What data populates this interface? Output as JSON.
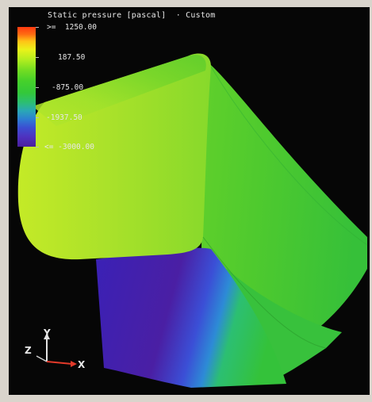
{
  "legend": {
    "title": "Static pressure [pascal]  · Custom",
    "levels": [
      ">=  1250.00",
      "187.50",
      "-875.00",
      "-1937.50",
      "<= -3000.00"
    ],
    "colors": [
      "#ff3a10",
      "#ffc416",
      "#74dd22",
      "#2cbf72",
      "#2d7fd2",
      "#4a1f9c"
    ]
  },
  "axis_triad": {
    "y_label": "Y",
    "z_label": "Z",
    "x_label": "X",
    "icon": "xyz-axis-triad-icon"
  }
}
